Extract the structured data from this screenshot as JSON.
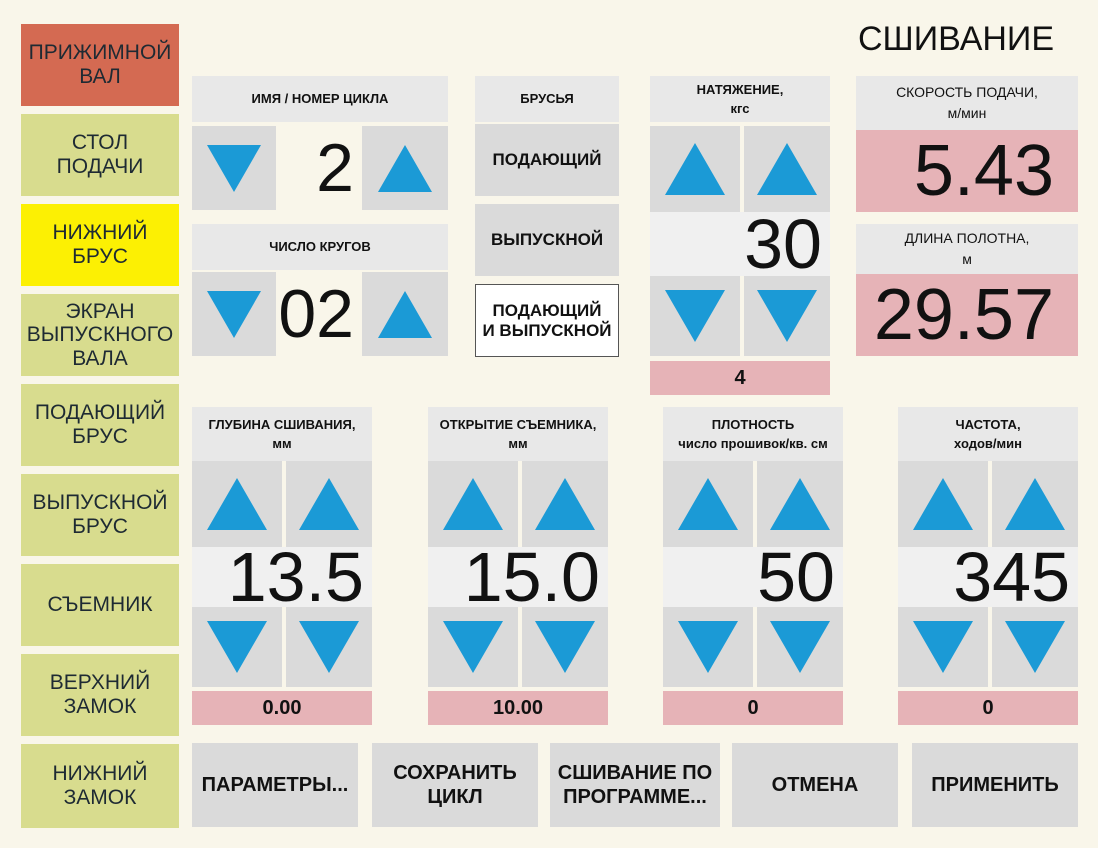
{
  "title": "СШИВАНИЕ",
  "sidebar": [
    "ПРИЖИМНОЙ\nВАЛ",
    "СТОЛ\nПОДАЧИ",
    "НИЖНИЙ\nБРУС",
    "ЭКРАН\nВЫПУСКНОГО\nВАЛА",
    "ПОДАЮЩИЙ\nБРУС",
    "ВЫПУСКНОЙ\nБРУС",
    "СЪЕМНИК",
    "ВЕРХНИЙ\nЗАМОК",
    "НИЖНИЙ\nЗАМОК"
  ],
  "cycle": {
    "label": "ИМЯ / НОМЕР ЦИКЛА",
    "value": "2"
  },
  "rounds": {
    "label": "ЧИСЛО КРУГОВ",
    "value": "02"
  },
  "bars": {
    "label": "БРУСЬЯ",
    "options": [
      "ПОДАЮЩИЙ",
      "ВЫПУСКНОЙ",
      "ПОДАЮЩИЙ\nИ ВЫПУСКНОЙ"
    ]
  },
  "tension": {
    "label": "НАТЯЖЕНИЕ,\nкгс",
    "value": "30",
    "actual": "4"
  },
  "feed_speed": {
    "label": "СКОРОСТЬ ПОДАЧИ,\nм/мин",
    "value": "5.43"
  },
  "length": {
    "label": "ДЛИНА ПОЛОТНА,\nм",
    "value": "29.57"
  },
  "depth": {
    "label": "ГЛУБИНА СШИВАНИЯ,\nмм",
    "value": "13.5",
    "actual": "0.00"
  },
  "stripper": {
    "label": "ОТКРЫТИЕ СЪЕМНИКА,\nмм",
    "value": "15.0",
    "actual": "10.00"
  },
  "density": {
    "label": "ПЛОТНОСТЬ\nчисло прошивок/кв. см",
    "value": "50",
    "actual": "0"
  },
  "frequency": {
    "label": "ЧАСТОТА,\nходов/мин",
    "value": "345",
    "actual": "0"
  },
  "bottom": [
    "ПАРАМЕТРЫ...",
    "СОХРАНИТЬ\nЦИКЛ",
    "СШИВАНИЕ ПО\nПРОГРАММЕ...",
    "ОТМЕНА",
    "ПРИМЕНИТЬ"
  ]
}
